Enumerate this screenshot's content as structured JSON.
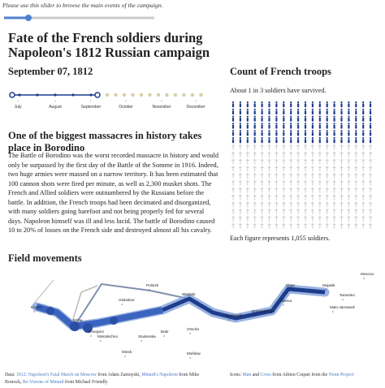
{
  "header": {
    "note": "Please use this slider to browse the main events of the campaign.",
    "title": "Fate of the French soldiers during Napoleon's 1812 Russian campaign"
  },
  "timeline": {
    "date": "September 07, 1812",
    "months": [
      "July",
      "August",
      "September",
      "October",
      "November",
      "December"
    ]
  },
  "event": {
    "title": "One of the biggest massacres in history takes place in Borodino",
    "text": "The Battle of Borodino was the worst recorded massacre in history and would only be surpassed by the first day of the Battle of the Somme in 1916. Indeed, two huge armies were massed on a narrow territory. It has been estimated that 100 cannon shots were fired per minute, as well as 2,300 musket shots. The French and Allied soldiers were outnumbered by the Russians before the battle. In addition, the French troops had been decimated and disorganized, with many soldiers going barefoot and not being properly fed for several days. Napoleon himself was ill and less lucid. The battle of Borodino caused 10 to 20% of losses on the French side and destroyed almost all his cavalry."
  },
  "troops": {
    "title": "Count of French troops",
    "summary": "About 1 in 3 soldiers have survived.",
    "note": "Each figure represents 1,055 soldiers."
  },
  "map": {
    "title": "Field movements",
    "cities": [
      "Kowno",
      "Wilna",
      "Smorgoni",
      "Molodechno",
      "Glubokoe",
      "Polotzk",
      "Witebsk",
      "Studenska",
      "Bobr",
      "Orscha",
      "Minsk",
      "Mohilow",
      "Smolensk",
      "Dorogobouge",
      "Wixma",
      "Chjat",
      "Mojaisk",
      "Tarantino",
      "Malo-Jarosewli",
      "Moscou"
    ]
  },
  "footer": {
    "data_label": "Data:",
    "sources": [
      {
        "title": "1812: Napoleon's Fatal March on Moscow",
        "by": "from Adam Zamoyski,"
      },
      {
        "title": "Minard's Napoleon",
        "by": "from Mike Bostock,"
      },
      {
        "title": "Re-Visions of Minard",
        "by": "from Michael Friendly"
      }
    ],
    "icons_label": "Icons:",
    "icon_man": "Man",
    "and": "and",
    "icon_cross": "Cross",
    "icons_by": "from Adrien Coquet from the",
    "noun_project": "Noun Project"
  }
}
